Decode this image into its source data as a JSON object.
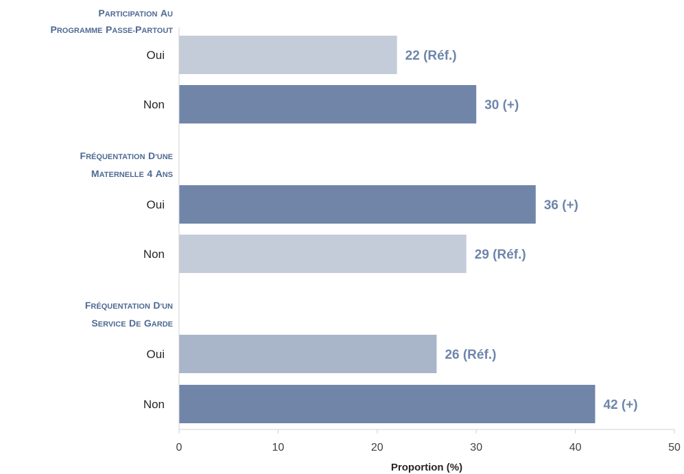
{
  "chart_data": {
    "type": "bar",
    "orientation": "horizontal",
    "xlabel": "Proportion (%)",
    "xlim": [
      0,
      50
    ],
    "xticks": [
      0,
      10,
      20,
      30,
      40,
      50
    ],
    "grid": false,
    "groups": [
      {
        "title_lines": [
          "Participation au",
          "programme Passe-Partout"
        ],
        "bars": [
          {
            "label": "Oui",
            "value": 22,
            "annotation": "22 (Réf.)",
            "color": "#c5ccd9"
          },
          {
            "label": "Non",
            "value": 30,
            "annotation": "30 (+)",
            "color": "#7085a8"
          }
        ]
      },
      {
        "title_lines": [
          "Fréquentation d'une",
          "maternelle 4 ans"
        ],
        "bars": [
          {
            "label": "Oui",
            "value": 36,
            "annotation": "36 (+)",
            "color": "#7085a8"
          },
          {
            "label": "Non",
            "value": 29,
            "annotation": "29 (Réf.)",
            "color": "#c5ccd9"
          }
        ]
      },
      {
        "title_lines": [
          "Fréquentation d'un",
          "service de garde"
        ],
        "bars": [
          {
            "label": "Oui",
            "value": 26,
            "annotation": "26 (Réf.)",
            "color": "#a9b5c9"
          },
          {
            "label": "Non",
            "value": 42,
            "annotation": "42 (+)",
            "color": "#7085a8"
          }
        ]
      }
    ]
  }
}
